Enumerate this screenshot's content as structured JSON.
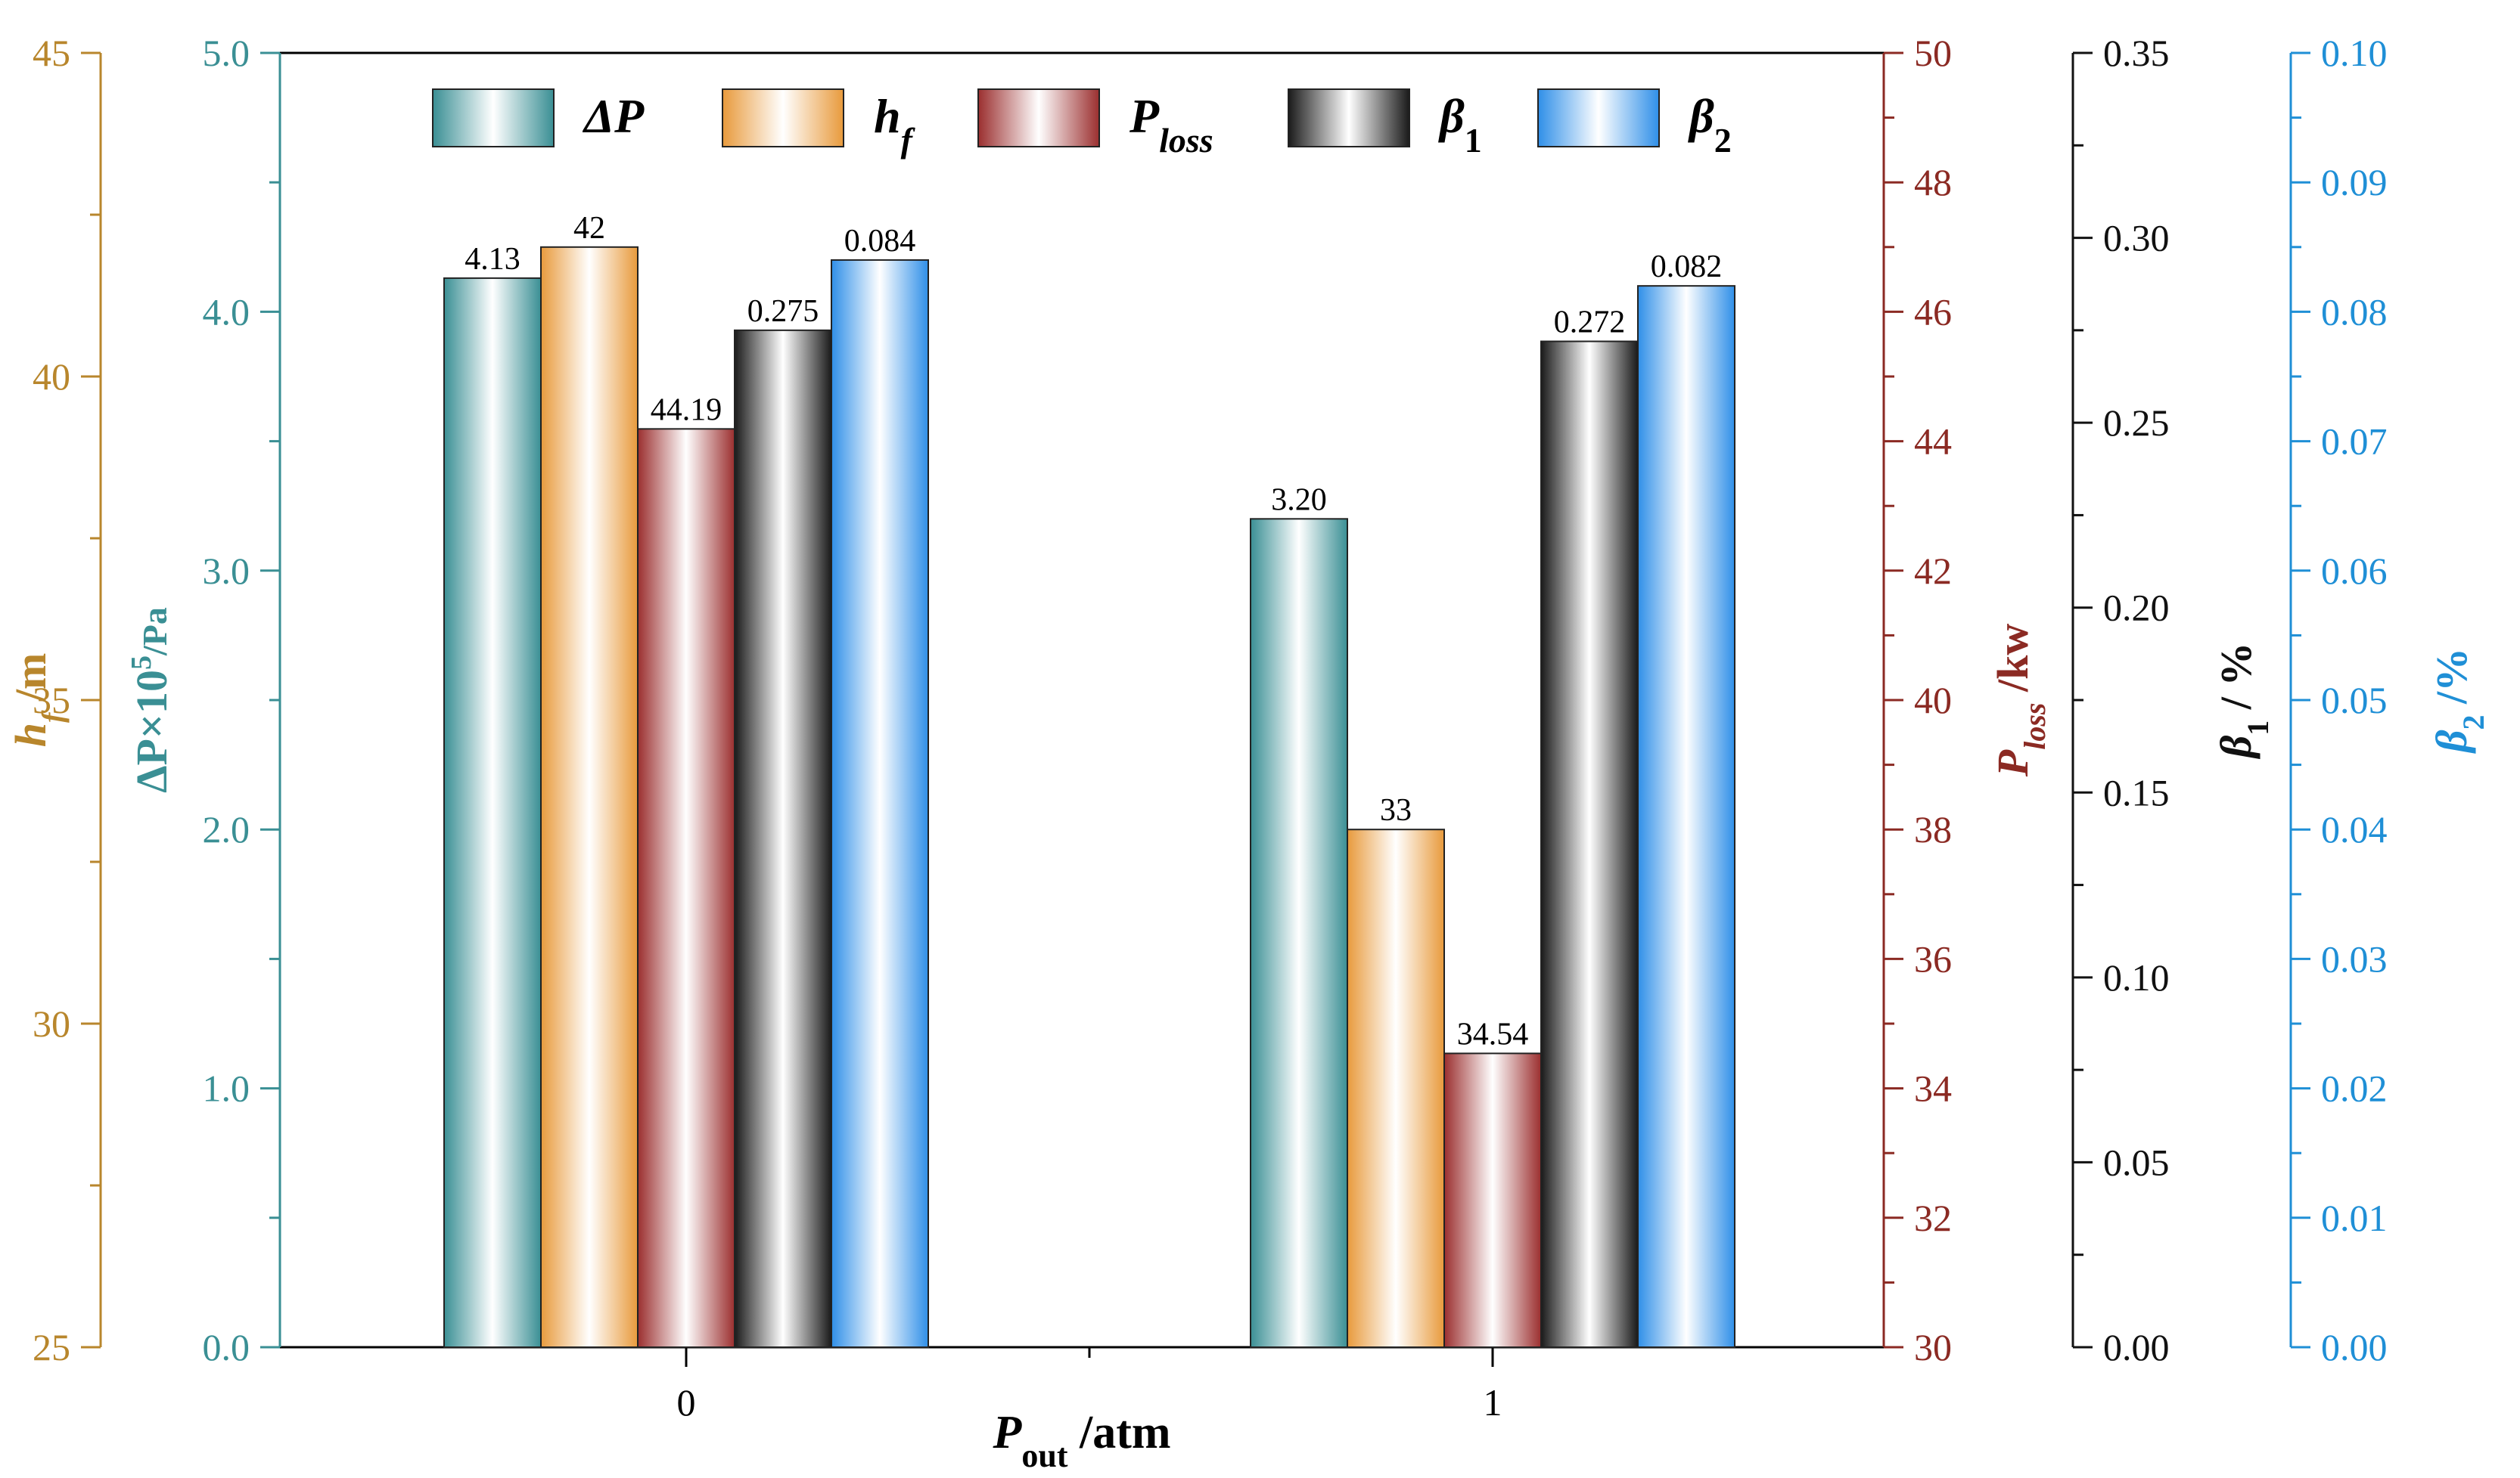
{
  "chart_data": {
    "type": "bar",
    "categories": [
      "0",
      "1"
    ],
    "xaxis": {
      "label_main": "P",
      "label_sub": "out",
      "label_unit": " /atm"
    },
    "legend_placement": "top",
    "grid": false,
    "axes": [
      {
        "id": "dp",
        "side": "left",
        "label_main": "ΔP×10",
        "label_sup": "5",
        "label_unit": "/Pa",
        "color": "#3a8f94",
        "ylim": [
          0,
          5
        ],
        "ticks": [
          "0.0",
          "1.0",
          "2.0",
          "3.0",
          "4.0",
          "5.0"
        ]
      },
      {
        "id": "hf",
        "side": "left",
        "label_main": "h",
        "label_sub": "f",
        "label_unit": " /m",
        "color": "#b8862c",
        "ylim": [
          25,
          45
        ],
        "ticks": [
          "25",
          "30",
          "35",
          "40",
          "45"
        ]
      },
      {
        "id": "ploss",
        "side": "right",
        "label_main": "P",
        "label_sub": "loss",
        "label_unit": " /kw",
        "color": "#8b2a23",
        "ylim": [
          30,
          50
        ],
        "ticks": [
          "30",
          "32",
          "34",
          "36",
          "38",
          "40",
          "42",
          "44",
          "46",
          "48",
          "50"
        ]
      },
      {
        "id": "b1",
        "side": "right",
        "label_main": "β",
        "label_sub": "1",
        "label_unit": " / %",
        "color": "#111111",
        "ylim": [
          0,
          0.35
        ],
        "ticks": [
          "0.00",
          "0.05",
          "0.10",
          "0.15",
          "0.20",
          "0.25",
          "0.30",
          "0.35"
        ]
      },
      {
        "id": "b2",
        "side": "right",
        "label_main": "β",
        "label_sub": "2",
        "label_unit": " /%",
        "color": "#1f8fd6",
        "ylim": [
          0,
          0.1
        ],
        "ticks": [
          "0.00",
          "0.01",
          "0.02",
          "0.03",
          "0.04",
          "0.05",
          "0.06",
          "0.07",
          "0.08",
          "0.09",
          "0.10"
        ]
      }
    ],
    "series": [
      {
        "name": "ΔP",
        "name_main": "ΔP",
        "name_sub": "",
        "axis": "dp",
        "values": [
          4.13,
          3.2
        ],
        "labels": [
          "4.13",
          "3.20"
        ],
        "color": "#3a8f94"
      },
      {
        "name": "hf",
        "name_main": "h",
        "name_sub": "f",
        "axis": "hf",
        "values": [
          42,
          33
        ],
        "labels": [
          "42",
          "33"
        ],
        "color": "#e89a3c"
      },
      {
        "name": "Ploss",
        "name_main": "P",
        "name_sub": "loss",
        "axis": "ploss",
        "values": [
          44.19,
          34.54
        ],
        "labels": [
          "44.19",
          "34.54"
        ],
        "color": "#9b2f2f"
      },
      {
        "name": "β1",
        "name_main": "β",
        "name_sub": "1",
        "axis": "b1",
        "values": [
          0.275,
          0.272
        ],
        "labels": [
          "0.275",
          "0.272"
        ],
        "color": "#1a1a1a"
      },
      {
        "name": "β2",
        "name_main": "β",
        "name_sub": "2",
        "axis": "b2",
        "values": [
          0.084,
          0.082
        ],
        "labels": [
          "0.084",
          "0.082"
        ],
        "color": "#2f8fe8"
      }
    ]
  }
}
